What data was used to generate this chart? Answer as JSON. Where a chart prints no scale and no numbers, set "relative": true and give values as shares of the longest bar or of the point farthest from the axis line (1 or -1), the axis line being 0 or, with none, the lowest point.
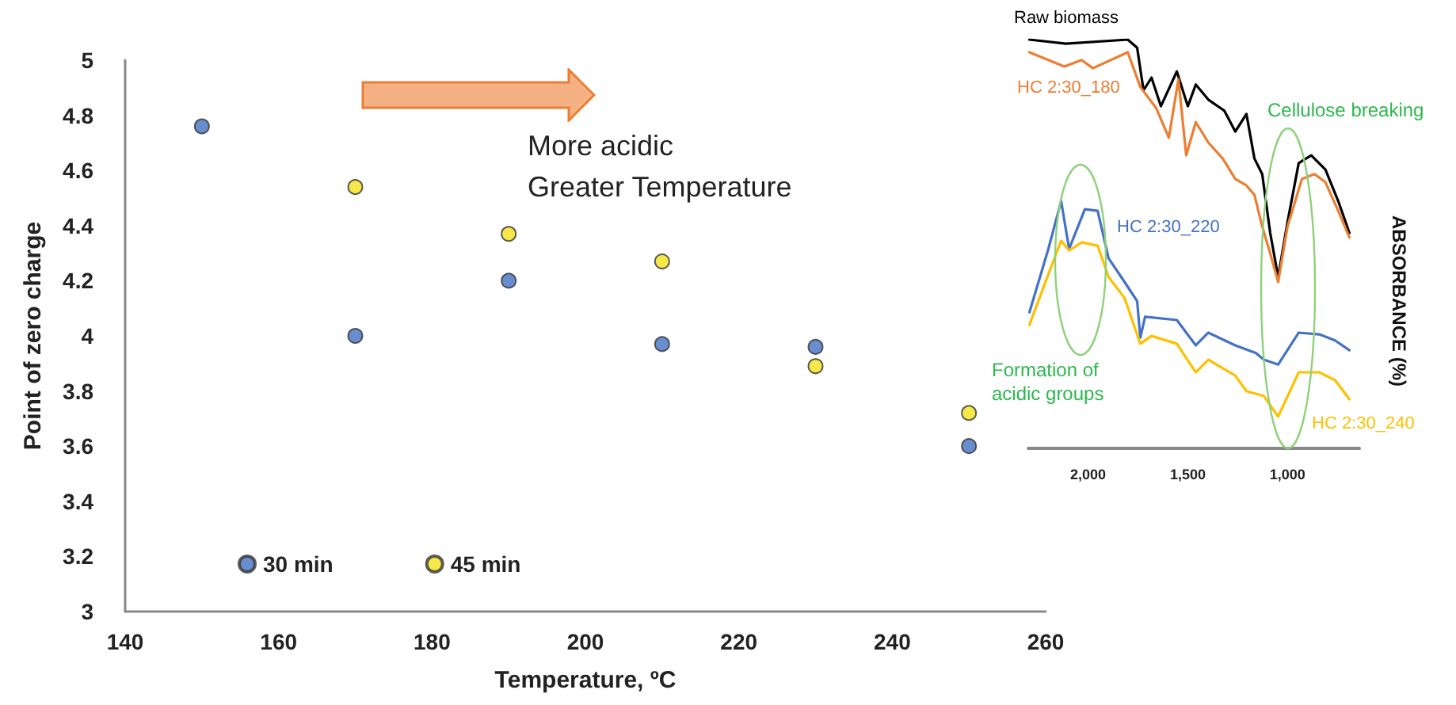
{
  "chart_data": [
    {
      "type": "scatter",
      "xlabel": "Temperature, ºC",
      "ylabel": "Point of zero charge",
      "xlim": [
        140,
        260
      ],
      "xticks": [
        140,
        160,
        180,
        200,
        220,
        240,
        260
      ],
      "ylim": [
        3,
        5
      ],
      "yticks": [
        3,
        3.2,
        3.4,
        3.6,
        3.8,
        4,
        4.2,
        4.4,
        4.6,
        4.8,
        5
      ],
      "grid": false,
      "legend": "bottom left",
      "marker": "circle",
      "annotations": [
        "More acidic",
        "Greater Temperature"
      ],
      "series": [
        {
          "name": "30 min",
          "color": "#4472c4",
          "x": [
            150,
            170,
            190,
            210,
            230,
            250
          ],
          "values": [
            4.76,
            4.0,
            4.2,
            3.97,
            3.96,
            3.6
          ]
        },
        {
          "name": "45 min",
          "color": "#f2e21a",
          "x": [
            170,
            190,
            210,
            230,
            250
          ],
          "values": [
            4.54,
            4.37,
            4.27,
            3.89,
            3.72
          ]
        }
      ]
    },
    {
      "type": "line",
      "relative": true,
      "ylabel": "ABSORBANCE (%)",
      "xlim": [
        2300,
        640
      ],
      "xticks": [
        {
          "value": 2000,
          "label": "2,000"
        },
        {
          "value": 1500,
          "label": "1,500"
        },
        {
          "value": 1000,
          "label": "1,000"
        }
      ],
      "tick_labels": "x",
      "grid": false,
      "legend": false,
      "marker": "none",
      "line_style": "solid",
      "annotations": [
        "Cellulose breaking",
        "Formation of acidic groups"
      ],
      "series": [
        {
          "name": "Raw biomass",
          "color": "#000000",
          "x": [
            2294,
            2111,
            1801,
            1754,
            1722,
            1682,
            1635,
            1555,
            1500,
            1460,
            1397,
            1317,
            1262,
            1206,
            1166,
            1127,
            1087,
            1047,
            1000,
            944,
            881,
            810,
            746,
            690
          ],
          "values": [
            1.0,
            0.99,
            1.0,
            0.98,
            0.876,
            0.907,
            0.837,
            0.922,
            0.837,
            0.89,
            0.853,
            0.826,
            0.775,
            0.818,
            0.709,
            0.671,
            0.527,
            0.419,
            0.554,
            0.698,
            0.717,
            0.682,
            0.605,
            0.527
          ]
        },
        {
          "name": "HC 2:30_180",
          "color": "#ed7d31",
          "x": [
            2294,
            2119,
            2032,
            1976,
            1801,
            1738,
            1659,
            1595,
            1547,
            1508,
            1460,
            1397,
            1325,
            1262,
            1206,
            1166,
            1127,
            1087,
            1047,
            1000,
            928,
            865,
            810,
            746,
            690
          ],
          "values": [
            0.969,
            0.934,
            0.95,
            0.93,
            0.969,
            0.884,
            0.833,
            0.76,
            0.903,
            0.717,
            0.798,
            0.748,
            0.709,
            0.659,
            0.643,
            0.62,
            0.543,
            0.477,
            0.407,
            0.543,
            0.659,
            0.671,
            0.651,
            0.581,
            0.516
          ]
        },
        {
          "name": "HC 2:30_220",
          "color": "#4472c4",
          "x": [
            2294,
            2199,
            2135,
            2095,
            2016,
            1952,
            1897,
            1817,
            1754,
            1738,
            1714,
            1555,
            1460,
            1397,
            1262,
            1158,
            1119,
            1047,
            944,
            841,
            762,
            690
          ],
          "values": [
            0.333,
            0.488,
            0.605,
            0.488,
            0.585,
            0.581,
            0.465,
            0.407,
            0.36,
            0.271,
            0.322,
            0.314,
            0.252,
            0.283,
            0.252,
            0.233,
            0.217,
            0.205,
            0.283,
            0.279,
            0.264,
            0.24
          ]
        },
        {
          "name": "HC 2:30_240",
          "color": "#ffc000",
          "x": [
            2294,
            2199,
            2135,
            2095,
            2032,
            1952,
            1897,
            1817,
            1738,
            1682,
            1555,
            1460,
            1397,
            1262,
            1206,
            1119,
            1047,
            944,
            841,
            762,
            690
          ],
          "values": [
            0.302,
            0.426,
            0.508,
            0.484,
            0.504,
            0.496,
            0.419,
            0.368,
            0.256,
            0.275,
            0.256,
            0.186,
            0.217,
            0.178,
            0.14,
            0.128,
            0.078,
            0.186,
            0.186,
            0.167,
            0.12
          ]
        }
      ]
    }
  ]
}
